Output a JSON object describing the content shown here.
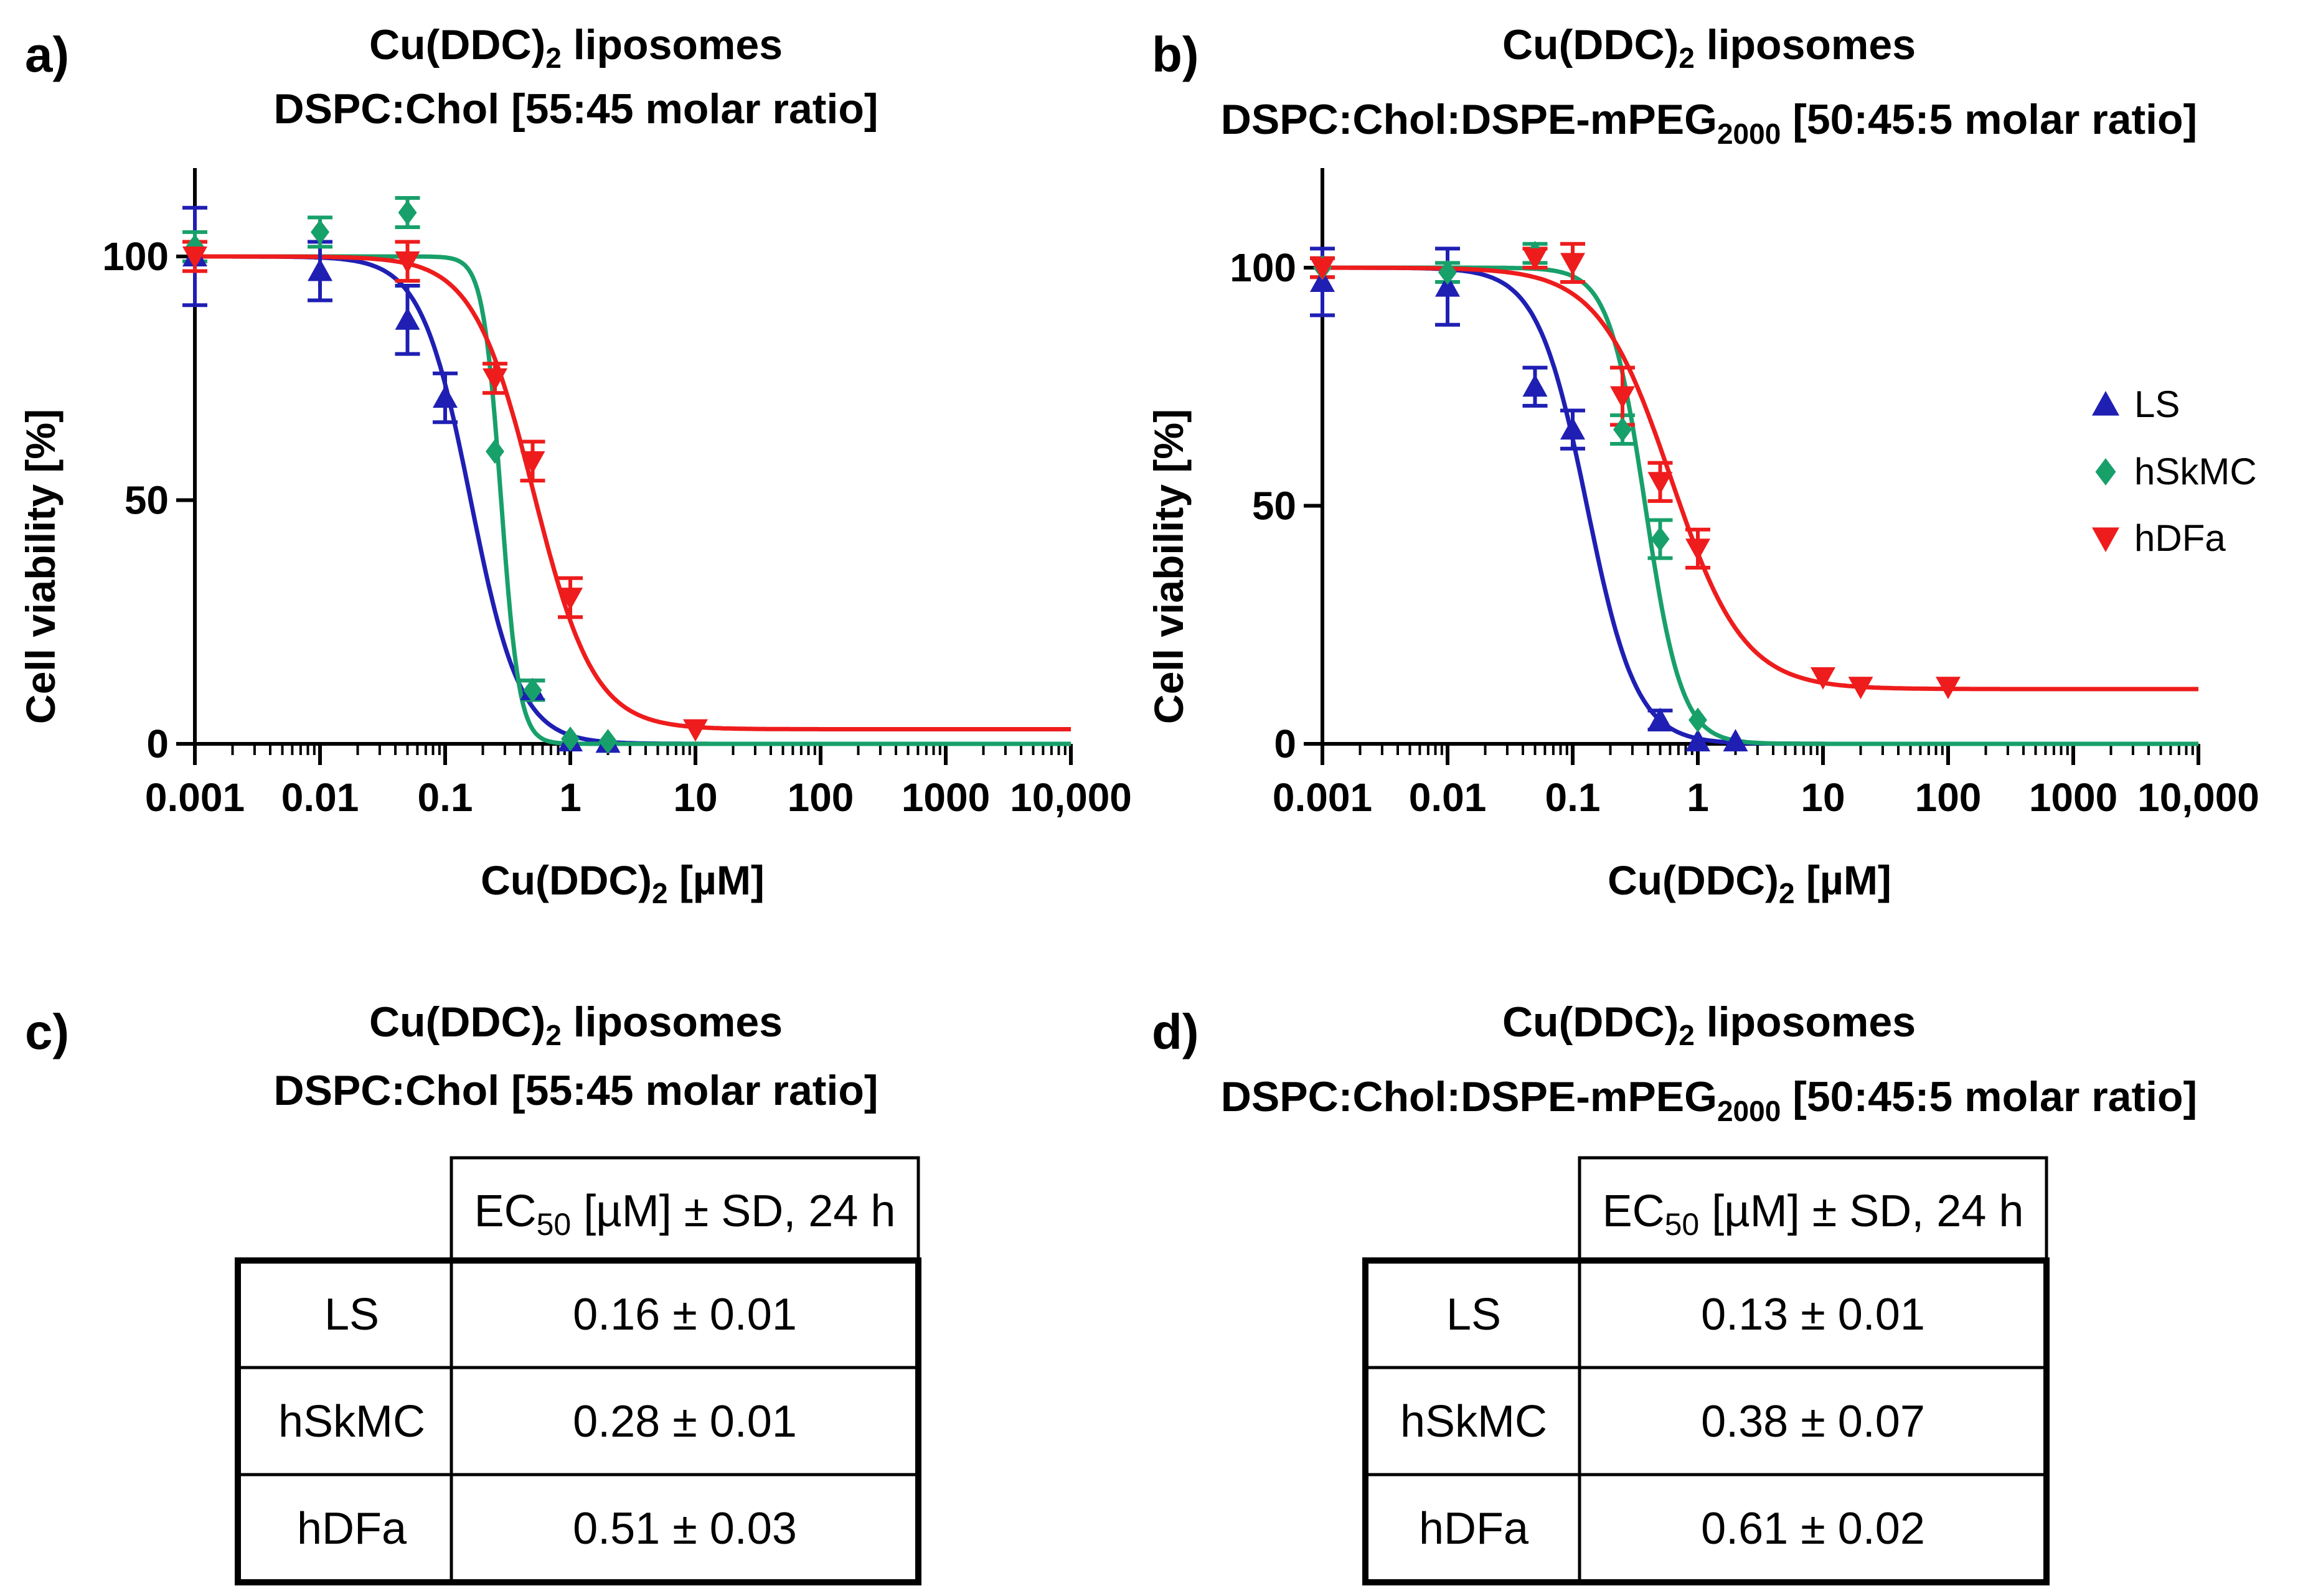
{
  "panels": {
    "a": {
      "label": "a)",
      "title_line1": "Cu(DDC)",
      "title_sub1": "2",
      "title_line1_rest": " liposomes",
      "title_line2": "DSPC:Chol [55:45 molar ratio]",
      "title_line2_sub": "",
      "title_line2_rest": ""
    },
    "b": {
      "label": "b)",
      "title_line1": "Cu(DDC)",
      "title_sub1": "2",
      "title_line1_rest": " liposomes",
      "title_line2": "DSPC:Chol:DSPE-mPEG",
      "title_line2_sub": "2000",
      "title_line2_rest": " [50:45:5 molar ratio]"
    },
    "c": {
      "label": "c)",
      "title_line1": "Cu(DDC)",
      "title_sub1": "2",
      "title_line1_rest": " liposomes",
      "title_line2": "DSPC:Chol [55:45 molar ratio]",
      "title_line2_sub": "",
      "title_line2_rest": ""
    },
    "d": {
      "label": "d)",
      "title_line1": "Cu(DDC)",
      "title_sub1": "2",
      "title_line1_rest": " liposomes",
      "title_line2": "DSPC:Chol:DSPE-mPEG",
      "title_line2_sub": "2000",
      "title_line2_rest": " [50:45:5 molar ratio]"
    }
  },
  "colors": {
    "LS": "#1f1fb4",
    "hSkMC": "#18a06a",
    "hDFa": "#ee1c1c"
  },
  "legend": [
    "LS",
    "hSkMC",
    "hDFa"
  ],
  "chart_data": [
    {
      "type": "scatter",
      "panel": "a",
      "xscale": "log",
      "xlim": [
        0.001,
        10000
      ],
      "ylim": [
        0,
        120
      ],
      "xticks": [
        "0.001",
        "0.01",
        "0.1",
        "1",
        "10",
        "100",
        "1000",
        "10,000"
      ],
      "yticks": [
        0,
        50,
        100
      ],
      "xlabel_main": "Cu(DDC)",
      "xlabel_sub": "2",
      "xlabel_rest": " [µM]",
      "ylabel": "Cell viability [%]",
      "series": [
        {
          "name": "LS",
          "marker": "triangle-up",
          "x": [
            0.001,
            0.01,
            0.05,
            0.1,
            0.5,
            1,
            2
          ],
          "y": [
            100,
            97,
            87,
            71,
            11,
            0.5,
            0.2
          ],
          "err": [
            10,
            6,
            7,
            5,
            2,
            0,
            0
          ],
          "fit": {
            "top": 100,
            "bottom": 0,
            "ec50": 0.16,
            "hill": 2.2
          }
        },
        {
          "name": "hSkMC",
          "marker": "diamond",
          "x": [
            0.001,
            0.01,
            0.05,
            0.25,
            0.5,
            1,
            2
          ],
          "y": [
            102,
            105,
            109,
            60,
            11,
            1,
            0.5
          ],
          "err": [
            3,
            3,
            3,
            0,
            2,
            0,
            0
          ],
          "fit": {
            "top": 100,
            "bottom": 0,
            "ec50": 0.28,
            "hill": 6
          }
        },
        {
          "name": "hDFa",
          "marker": "triangle-down",
          "x": [
            0.001,
            0.05,
            0.25,
            0.5,
            1,
            10
          ],
          "y": [
            100,
            99,
            75,
            58,
            30,
            3
          ],
          "err": [
            3,
            4,
            3,
            4,
            4,
            0
          ],
          "fit": {
            "top": 100,
            "bottom": 3,
            "ec50": 0.51,
            "hill": 1.8
          }
        }
      ]
    },
    {
      "type": "scatter",
      "panel": "b",
      "xscale": "log",
      "xlim": [
        0.001,
        10000
      ],
      "ylim": [
        0,
        120
      ],
      "xticks": [
        "0.001",
        "0.01",
        "0.1",
        "1",
        "10",
        "100",
        "1000",
        "10,000"
      ],
      "yticks": [
        0,
        50,
        100
      ],
      "xlabel_main": "Cu(DDC)",
      "xlabel_sub": "2",
      "xlabel_rest": " [µM]",
      "ylabel": "Cell viability [%]",
      "series": [
        {
          "name": "LS",
          "marker": "triangle-up",
          "x": [
            0.001,
            0.01,
            0.05,
            0.1,
            0.5,
            1,
            2
          ],
          "y": [
            97,
            96,
            75,
            66,
            5,
            0.5,
            0.5
          ],
          "err": [
            7,
            8,
            4,
            4,
            2,
            0,
            0
          ],
          "fit": {
            "top": 100,
            "bottom": 0,
            "ec50": 0.13,
            "hill": 2.2
          }
        },
        {
          "name": "hSkMC",
          "marker": "diamond",
          "x": [
            0.001,
            0.01,
            0.05,
            0.25,
            0.5,
            1
          ],
          "y": [
            100,
            99,
            103,
            66,
            43,
            5
          ],
          "err": [
            2,
            2,
            2,
            3,
            4,
            0
          ],
          "fit": {
            "top": 100,
            "bottom": 0,
            "ec50": 0.38,
            "hill": 3
          }
        },
        {
          "name": "hDFa",
          "marker": "triangle-down",
          "x": [
            0.001,
            0.05,
            0.1,
            0.25,
            0.5,
            1,
            10,
            20,
            100
          ],
          "y": [
            100,
            102,
            101,
            73,
            55,
            41,
            14,
            12,
            12
          ],
          "err": [
            2,
            2,
            4,
            6,
            4,
            4,
            0,
            0,
            0
          ],
          "fit": {
            "top": 100,
            "bottom": 11.5,
            "ec50": 0.61,
            "hill": 1.5
          }
        }
      ]
    },
    {
      "type": "table",
      "panel": "c",
      "header_main": "EC",
      "header_sub": "50",
      "header_rest": " [µM] ± SD, 24 h",
      "rows": [
        {
          "label": "LS",
          "value": "0.16 ± 0.01"
        },
        {
          "label": "hSkMC",
          "value": "0.28 ± 0.01"
        },
        {
          "label": "hDFa",
          "value": "0.51 ± 0.03"
        }
      ]
    },
    {
      "type": "table",
      "panel": "d",
      "header_main": "EC",
      "header_sub": "50",
      "header_rest": " [µM] ± SD, 24 h",
      "rows": [
        {
          "label": "LS",
          "value": "0.13 ± 0.01"
        },
        {
          "label": "hSkMC",
          "value": "0.38 ± 0.07"
        },
        {
          "label": "hDFa",
          "value": "0.61 ± 0.02"
        }
      ]
    }
  ]
}
